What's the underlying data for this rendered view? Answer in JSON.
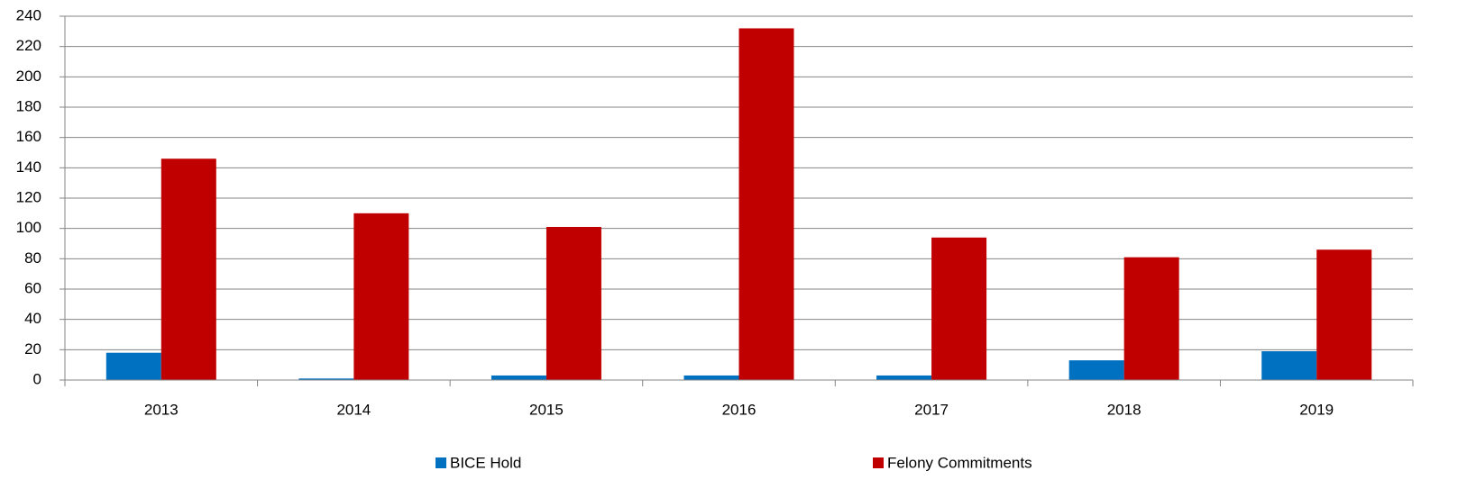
{
  "chart_data": {
    "type": "bar",
    "categories": [
      "2013",
      "2014",
      "2015",
      "2016",
      "2017",
      "2018",
      "2019"
    ],
    "series": [
      {
        "name": "BICE Hold",
        "color": "#0070c0",
        "values": [
          18,
          1,
          3,
          3,
          3,
          13,
          19
        ]
      },
      {
        "name": "Felony Commitments",
        "color": "#c00000",
        "values": [
          146,
          110,
          101,
          232,
          94,
          81,
          86
        ]
      }
    ],
    "ylim": [
      0,
      240
    ],
    "yticks": [
      0,
      20,
      40,
      60,
      80,
      100,
      120,
      140,
      160,
      180,
      200,
      220,
      240
    ],
    "grid": true,
    "legend": "bottom"
  }
}
